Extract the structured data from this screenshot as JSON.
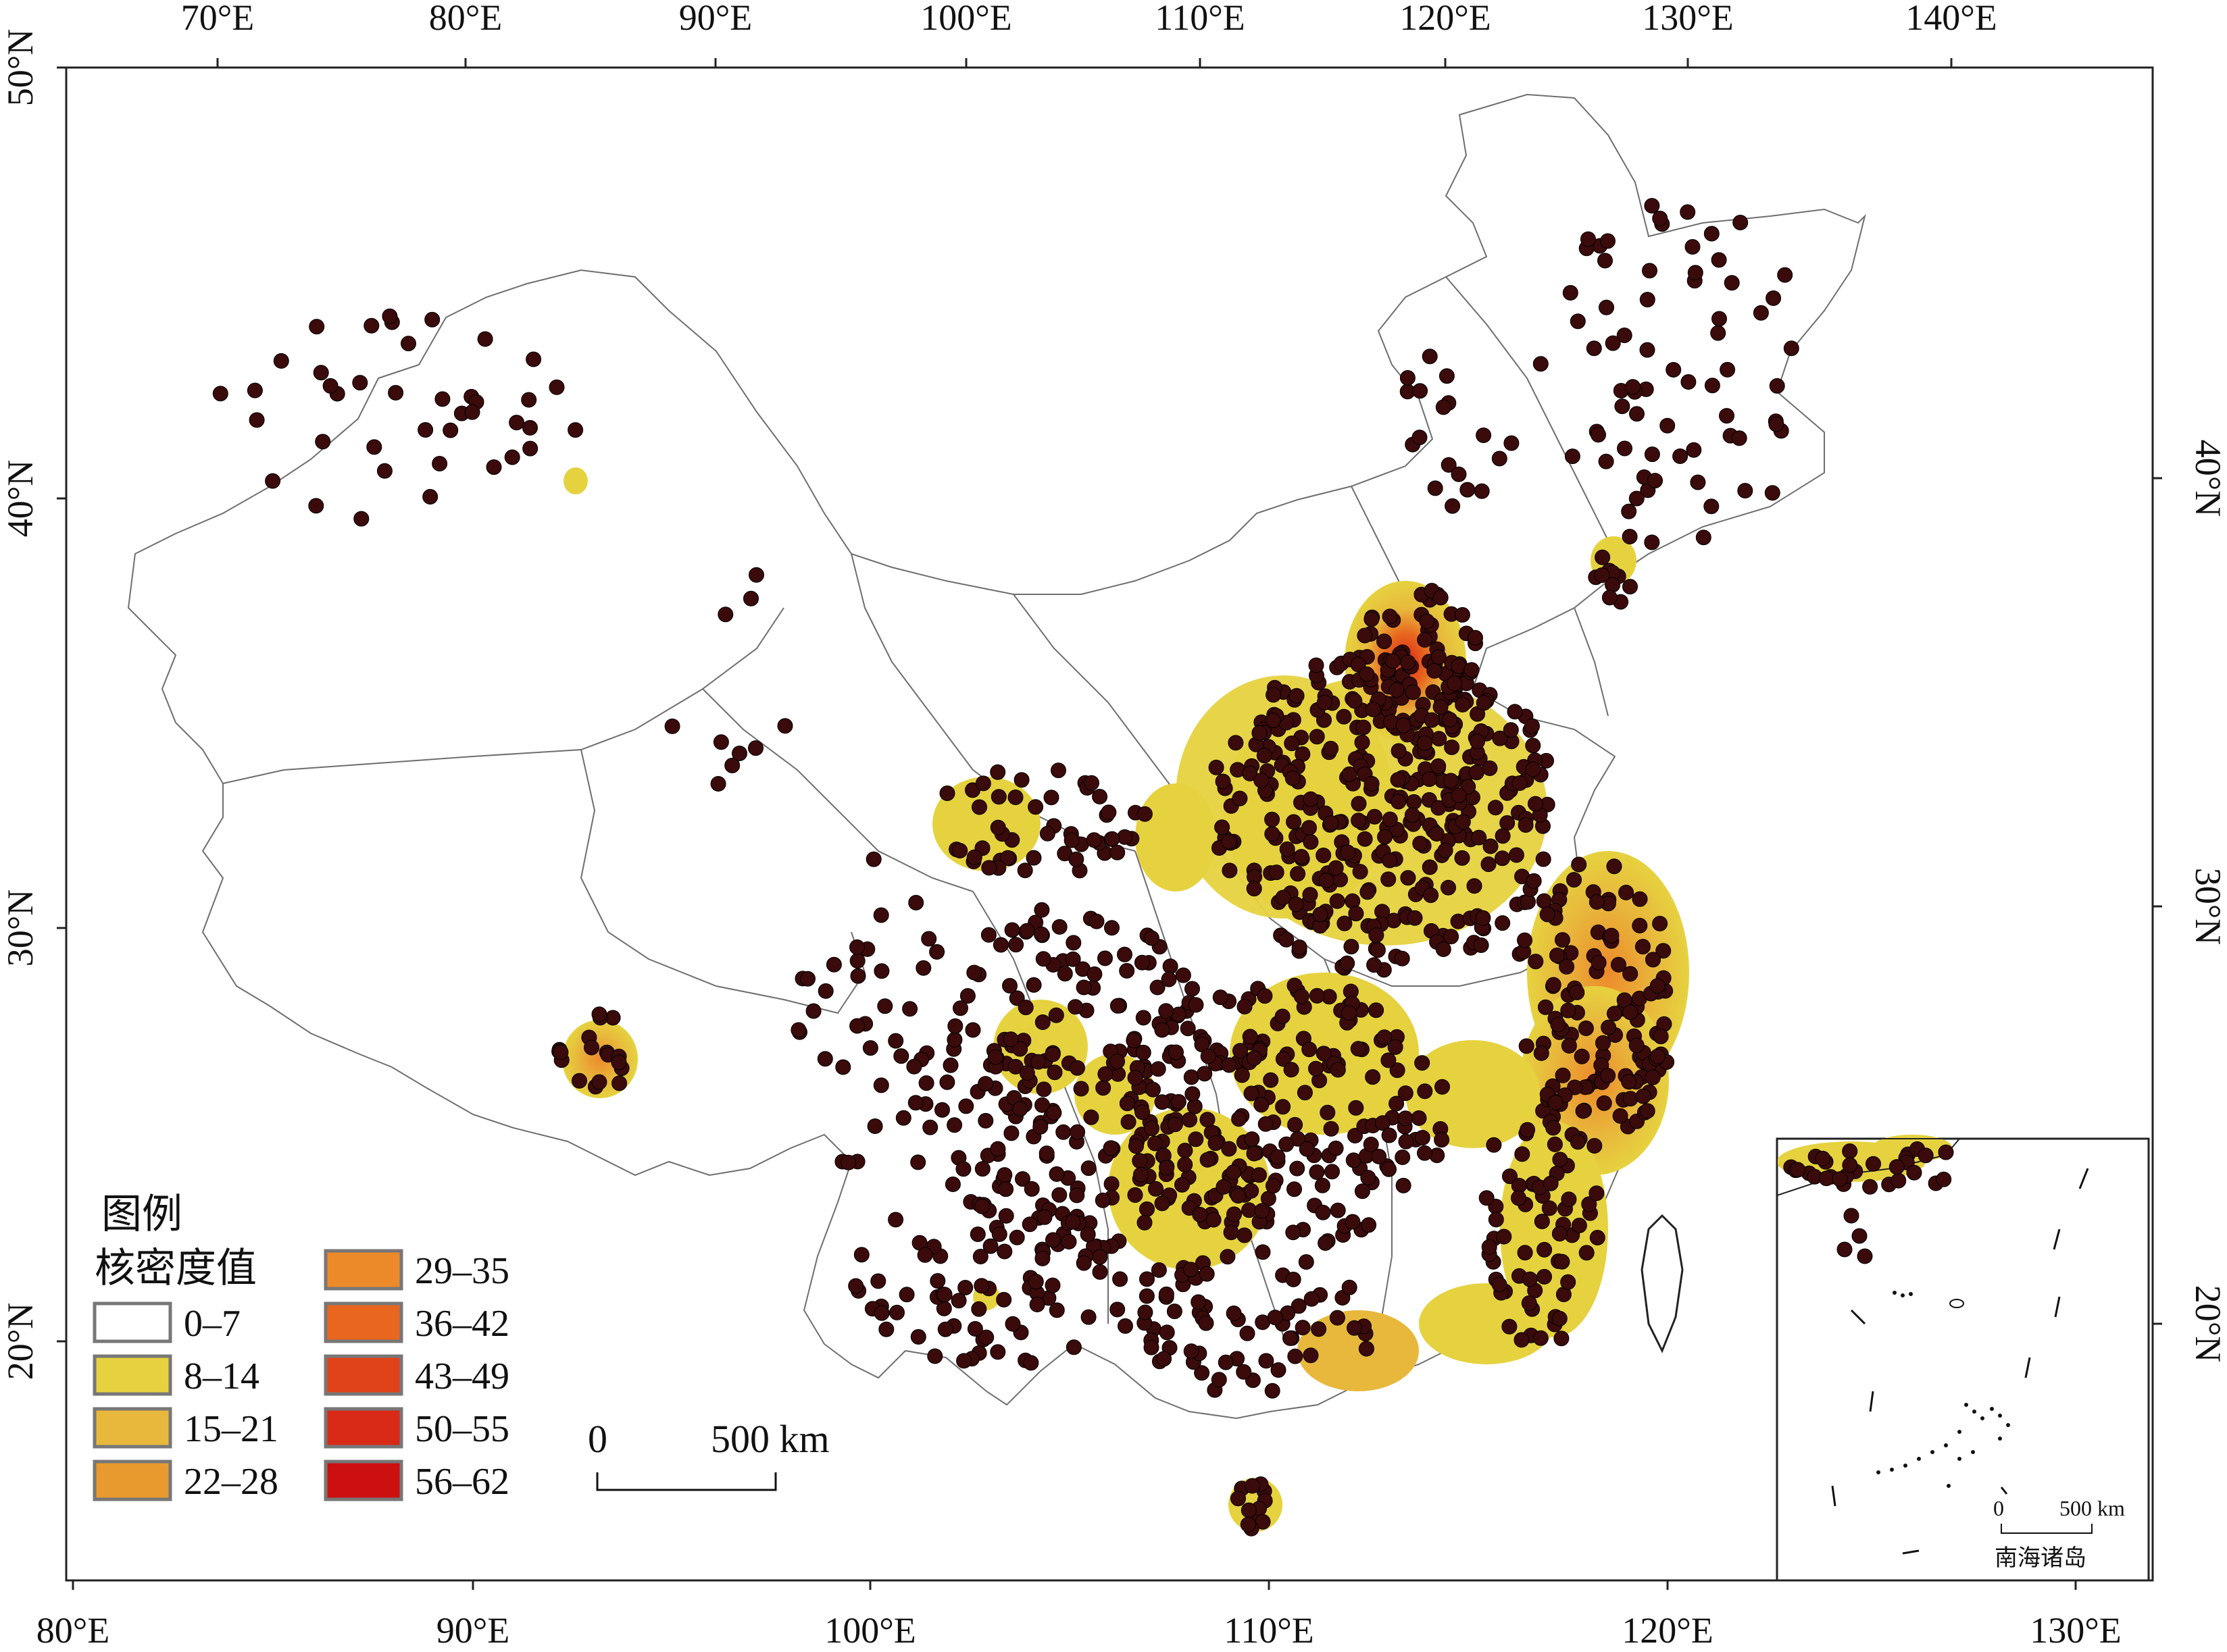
{
  "map": {
    "top_ticks": [
      "70°E",
      "80°E",
      "90°E",
      "100°E",
      "110°E",
      "120°E",
      "130°E",
      "140°E"
    ],
    "bottom_ticks": [
      "80°E",
      "90°E",
      "100°E",
      "110°E",
      "120°E",
      "130°E"
    ],
    "left_ticks": [
      "50°N",
      "40°N",
      "30°N",
      "20°N"
    ],
    "right_ticks": [
      "40°N",
      "30°N",
      "20°N"
    ]
  },
  "legend": {
    "title": "图例",
    "subtitle": "核密度值",
    "items": [
      {
        "label": "0–7",
        "color": "#ffffff"
      },
      {
        "label": "8–14",
        "color": "#e6d23f"
      },
      {
        "label": "15–21",
        "color": "#e8b83c"
      },
      {
        "label": "22–28",
        "color": "#e89a2e"
      },
      {
        "label": "29–35",
        "color": "#ec8a2a"
      },
      {
        "label": "36–42",
        "color": "#e8661f"
      },
      {
        "label": "43–49",
        "color": "#e0431a"
      },
      {
        "label": "50–55",
        "color": "#d92a18"
      },
      {
        "label": "56–62",
        "color": "#cc1010"
      }
    ]
  },
  "scale_bar": {
    "start": "0",
    "end": "500 km"
  },
  "inset": {
    "title": "南海诸岛",
    "scale_start": "0",
    "scale_end": "500 km"
  },
  "colors": {
    "density_low": "#e6d23f",
    "density_mid": "#e89a2e",
    "density_high": "#d92a18",
    "site_dot": "#3b0b0b"
  }
}
